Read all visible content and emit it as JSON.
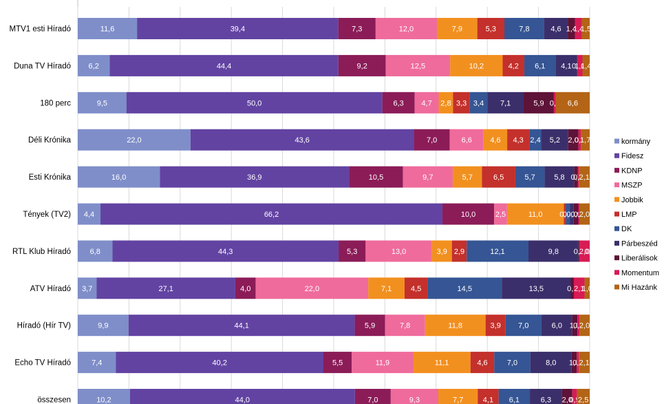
{
  "chart_data": {
    "type": "bar",
    "orientation": "horizontal",
    "stacked": "percent",
    "title": "",
    "xlabel": "",
    "ylabel": "",
    "xlim": [
      0,
      100
    ],
    "grid": true,
    "legend_position": "right",
    "categories": [
      "MTV1 esti Híradó",
      "Duna TV Híradó",
      "180 perc",
      "Déli Krónika",
      "Esti Krónika",
      "Tények (TV2)",
      "RTL Klub Híradó",
      "ATV Híradó",
      "Híradó (Hír TV)",
      "Echo TV Híradó",
      "összesen"
    ],
    "series": [
      {
        "name": "kormány",
        "color": "#7f8ec9",
        "values": [
          11.6,
          6.2,
          9.5,
          22.0,
          16.0,
          4.4,
          6.8,
          3.7,
          9.9,
          7.4,
          10.2
        ]
      },
      {
        "name": "Fidesz",
        "color": "#6243a2",
        "values": [
          39.4,
          44.4,
          50.0,
          43.6,
          36.9,
          66.2,
          44.3,
          27.1,
          44.1,
          40.2,
          44.0
        ]
      },
      {
        "name": "KDNP",
        "color": "#8b1c58",
        "values": [
          7.3,
          9.2,
          6.3,
          7.0,
          10.5,
          10.0,
          5.3,
          4.0,
          5.9,
          5.5,
          7.0
        ]
      },
      {
        "name": "MSZP",
        "color": "#ef6b9c",
        "values": [
          12.0,
          12.5,
          4.7,
          6.6,
          9.7,
          2.5,
          13.0,
          22.0,
          7.8,
          11.9,
          9.3
        ]
      },
      {
        "name": "Jobbik",
        "color": "#f2901f",
        "values": [
          7.9,
          10.2,
          2.8,
          4.6,
          5.7,
          11.0,
          3.9,
          7.1,
          11.8,
          11.1,
          7.7
        ]
      },
      {
        "name": "LMP",
        "color": "#c4302b",
        "values": [
          5.3,
          4.2,
          3.3,
          4.3,
          6.5,
          0.4,
          2.9,
          4.5,
          3.9,
          4.6,
          4.1
        ]
      },
      {
        "name": "DK",
        "color": "#355594",
        "values": [
          7.8,
          6.1,
          3.4,
          2.4,
          5.7,
          0.8,
          12.1,
          14.5,
          7.0,
          7.0,
          6.1
        ]
      },
      {
        "name": "Párbeszéd",
        "color": "#3b2f6b",
        "values": [
          4.6,
          4.1,
          7.1,
          5.2,
          5.8,
          0.7,
          9.8,
          13.5,
          6.0,
          8.0,
          6.3
        ]
      },
      {
        "name": "Liberálisok",
        "color": "#5e1338",
        "values": [
          1.4,
          0.1,
          5.9,
          2.0,
          0.7,
          0.9,
          0.2,
          0.6,
          1.0,
          1.0,
          2.0
        ]
      },
      {
        "name": "Momentum",
        "color": "#d81b55",
        "values": [
          1.4,
          1.0,
          0.4,
          0.5,
          0.2,
          0.2,
          2.0,
          2.1,
          0.4,
          0.4,
          0.9
        ]
      },
      {
        "name": "Mi Hazánk",
        "color": "#b36416",
        "values": [
          1.5,
          1.4,
          6.6,
          1.7,
          2.1,
          2.0,
          0.0,
          1.0,
          2.0,
          2.1,
          2.5
        ]
      }
    ]
  }
}
